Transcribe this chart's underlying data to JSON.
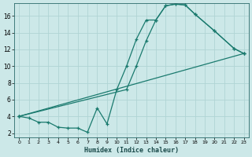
{
  "xlabel": "Humidex (Indice chaleur)",
  "bg_color": "#cce8e8",
  "line_color": "#1a7a6e",
  "grid_color": "#b0d4d4",
  "xlim": [
    -0.5,
    23.5
  ],
  "ylim": [
    1.5,
    17.5
  ],
  "xticks": [
    0,
    1,
    2,
    3,
    4,
    5,
    6,
    7,
    8,
    9,
    10,
    11,
    12,
    13,
    14,
    15,
    16,
    17,
    18,
    19,
    20,
    21,
    22,
    23
  ],
  "yticks": [
    2,
    4,
    6,
    8,
    10,
    12,
    14,
    16
  ],
  "curve1_x": [
    0,
    1,
    2,
    3,
    4,
    5,
    6,
    7,
    8,
    9,
    10,
    11,
    12,
    13,
    14,
    15,
    16,
    17,
    18,
    20,
    22,
    23
  ],
  "curve1_y": [
    4.0,
    3.8,
    3.3,
    3.3,
    2.7,
    2.6,
    2.6,
    2.1,
    5.0,
    3.1,
    7.2,
    10.0,
    13.2,
    15.5,
    15.5,
    17.2,
    17.4,
    17.3,
    16.2,
    14.2,
    12.1,
    11.5
  ],
  "curve2_x": [
    0,
    11,
    12,
    13,
    14,
    15,
    16,
    17,
    18,
    20,
    22,
    23
  ],
  "curve2_y": [
    4.0,
    7.2,
    10.0,
    13.0,
    15.5,
    17.2,
    17.4,
    17.3,
    16.2,
    14.2,
    12.1,
    11.5
  ],
  "curve3_x": [
    0,
    23
  ],
  "curve3_y": [
    4.0,
    11.5
  ]
}
